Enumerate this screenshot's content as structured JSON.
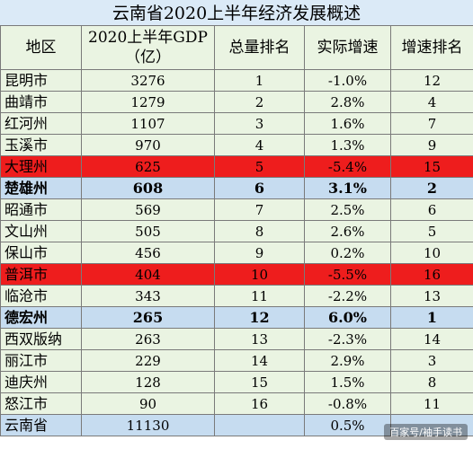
{
  "title": "云南省2020上半年经济发展概述",
  "headers": [
    "地区",
    "2020上半年GDP\n（亿）",
    "总量排名",
    "实际增速",
    "增速排名"
  ],
  "header_gdp_line1": "2020上半年GDP",
  "header_gdp_line2": "（亿）",
  "rows": [
    {
      "region": "昆明市",
      "gdp": "3276",
      "rank": "1",
      "growth": "-1.0%",
      "growth_rank": "12"
    },
    {
      "region": "曲靖市",
      "gdp": "1279",
      "rank": "2",
      "growth": "2.8%",
      "growth_rank": "4"
    },
    {
      "region": "红河州",
      "gdp": "1107",
      "rank": "3",
      "growth": "1.6%",
      "growth_rank": "7"
    },
    {
      "region": "玉溪市",
      "gdp": "970",
      "rank": "4",
      "growth": "1.3%",
      "growth_rank": "9"
    },
    {
      "region": "大理州",
      "gdp": "625",
      "rank": "5",
      "growth": "-5.4%",
      "growth_rank": "15"
    },
    {
      "region": "楚雄州",
      "gdp": "608",
      "rank": "6",
      "growth": "3.1%",
      "growth_rank": "2"
    },
    {
      "region": "昭通市",
      "gdp": "569",
      "rank": "7",
      "growth": "2.5%",
      "growth_rank": "6"
    },
    {
      "region": "文山州",
      "gdp": "505",
      "rank": "8",
      "growth": "2.6%",
      "growth_rank": "5"
    },
    {
      "region": "保山市",
      "gdp": "456",
      "rank": "9",
      "growth": "0.2%",
      "growth_rank": "10"
    },
    {
      "region": "普洱市",
      "gdp": "404",
      "rank": "10",
      "growth": "-5.5%",
      "growth_rank": "16"
    },
    {
      "region": "临沧市",
      "gdp": "343",
      "rank": "11",
      "growth": "-2.2%",
      "growth_rank": "13"
    },
    {
      "region": "德宏州",
      "gdp": "265",
      "rank": "12",
      "growth": "6.0%",
      "growth_rank": "1"
    },
    {
      "region": "西双版纳",
      "gdp": "263",
      "rank": "13",
      "growth": "-2.3%",
      "growth_rank": "14"
    },
    {
      "region": "丽江市",
      "gdp": "229",
      "rank": "14",
      "growth": "2.9%",
      "growth_rank": "3"
    },
    {
      "region": "迪庆州",
      "gdp": "128",
      "rank": "15",
      "growth": "1.5%",
      "growth_rank": "8"
    },
    {
      "region": "怒江市",
      "gdp": "90",
      "rank": "16",
      "growth": "-0.8%",
      "growth_rank": "11"
    },
    {
      "region": "云南省",
      "gdp": "11130",
      "rank": "",
      "growth": "0.5%",
      "growth_rank": ""
    }
  ],
  "highlights": {
    "red_rows": [
      4,
      9
    ],
    "blue_bold_rows": [
      5,
      11
    ],
    "blue_rows": [
      16
    ]
  },
  "colors": {
    "header_bg": "#dbeaf7",
    "row_bg": "#eaf4e2",
    "red": "#ee1d1d",
    "blue": "#c6dcf0"
  },
  "watermark": "百家号/袖手读书"
}
